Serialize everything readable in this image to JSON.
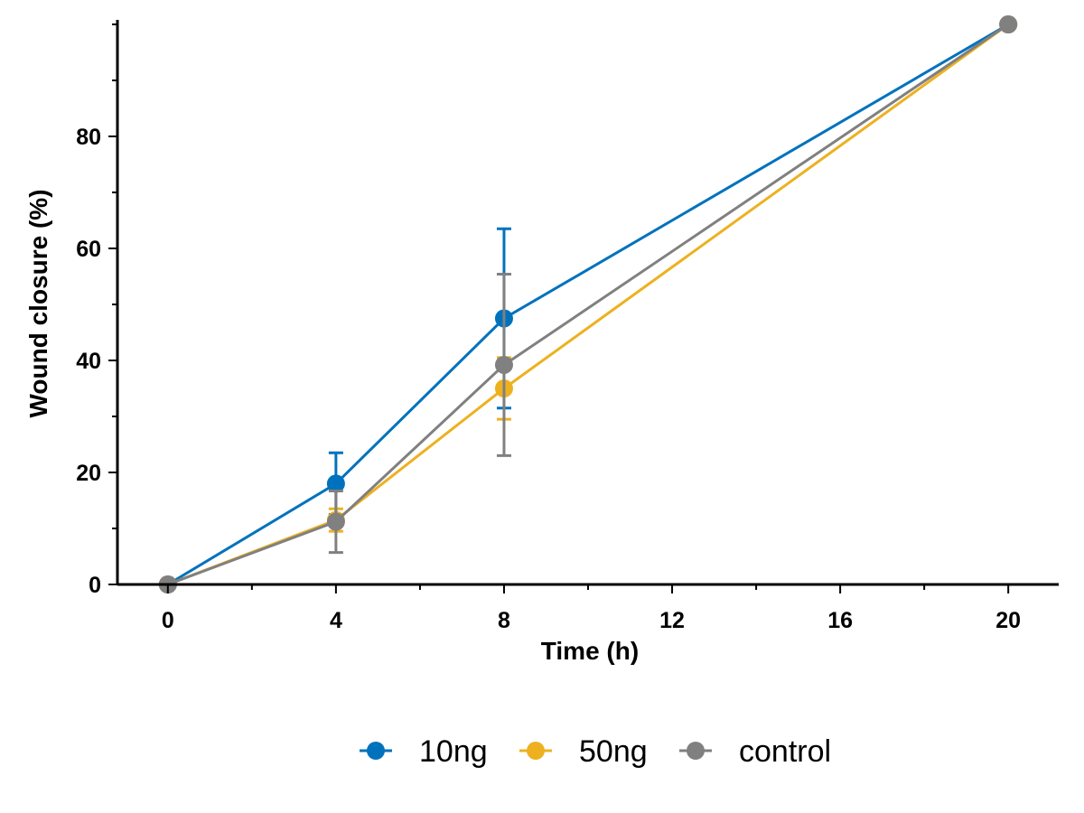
{
  "chart_data": {
    "type": "line",
    "title": "",
    "xlabel": "Time (h)",
    "ylabel": "Wound closure (%)",
    "x": [
      0,
      4,
      8,
      20
    ],
    "xlim": [
      -1.2,
      21.2
    ],
    "ylim": [
      0,
      100
    ],
    "xticks": [
      0,
      4,
      8,
      12,
      16,
      20
    ],
    "yticks": [
      0,
      20,
      40,
      60,
      80
    ],
    "grid": false,
    "legend_position": "bottom",
    "error_bars": true,
    "series": [
      {
        "name": "10ng",
        "color": "#0072BD",
        "values": [
          0,
          18,
          47.5,
          100
        ],
        "errors": [
          0,
          5.5,
          16,
          0
        ]
      },
      {
        "name": "50ng",
        "color": "#EDB120",
        "values": [
          0,
          11.5,
          35,
          100
        ],
        "errors": [
          0,
          2,
          5.5,
          0
        ]
      },
      {
        "name": "control",
        "color": "#808080",
        "values": [
          0,
          11.2,
          39.2,
          100
        ],
        "errors": [
          0,
          5.5,
          16.2,
          0
        ]
      }
    ]
  }
}
